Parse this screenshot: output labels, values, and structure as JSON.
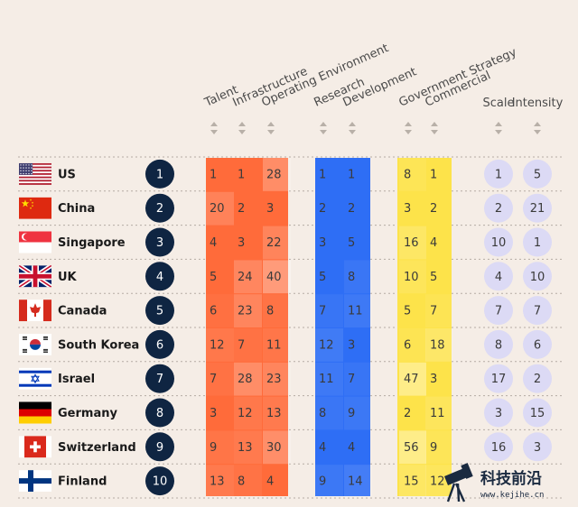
{
  "chart_data": {
    "type": "table",
    "columns": [
      {
        "key": "talent",
        "label": "Talent",
        "group": "implementation",
        "color": "#ff6b3a"
      },
      {
        "key": "infrastructure",
        "label": "Infrastructure",
        "group": "implementation",
        "color": "#ff6b3a"
      },
      {
        "key": "operating_environment",
        "label": "Operating Environment",
        "group": "implementation",
        "color": "#ff6b3a"
      },
      {
        "key": "research",
        "label": "Research",
        "group": "innovation",
        "color": "#2e6ef5"
      },
      {
        "key": "development",
        "label": "Development",
        "group": "innovation",
        "color": "#2e6ef5"
      },
      {
        "key": "government_strategy",
        "label": "Government Strategy",
        "group": "investment",
        "color": "#fde34a"
      },
      {
        "key": "commercial",
        "label": "Commercial",
        "group": "investment",
        "color": "#fde34a"
      },
      {
        "key": "scale",
        "label": "Scale",
        "group": "summary",
        "color": "#dcdaf5"
      },
      {
        "key": "intensity",
        "label": "Intensity",
        "group": "summary",
        "color": "#dcdaf5"
      }
    ],
    "rows": [
      {
        "rank": 1,
        "country": "US",
        "flag": "us-flag",
        "values": [
          1,
          1,
          28,
          1,
          1,
          8,
          1,
          1,
          5
        ]
      },
      {
        "rank": 2,
        "country": "China",
        "flag": "china-flag",
        "values": [
          20,
          2,
          3,
          2,
          2,
          3,
          2,
          2,
          21
        ]
      },
      {
        "rank": 3,
        "country": "Singapore",
        "flag": "singapore-flag",
        "values": [
          4,
          3,
          22,
          3,
          5,
          16,
          4,
          10,
          1
        ]
      },
      {
        "rank": 4,
        "country": "UK",
        "flag": "uk-flag",
        "values": [
          5,
          24,
          40,
          5,
          8,
          10,
          5,
          4,
          10
        ]
      },
      {
        "rank": 5,
        "country": "Canada",
        "flag": "canada-flag",
        "values": [
          6,
          23,
          8,
          7,
          11,
          5,
          7,
          7,
          7
        ]
      },
      {
        "rank": 6,
        "country": "South Korea",
        "flag": "south-korea-flag",
        "values": [
          12,
          7,
          11,
          12,
          3,
          6,
          18,
          8,
          6
        ]
      },
      {
        "rank": 7,
        "country": "Israel",
        "flag": "israel-flag",
        "values": [
          7,
          28,
          23,
          11,
          7,
          47,
          3,
          17,
          2
        ]
      },
      {
        "rank": 8,
        "country": "Germany",
        "flag": "germany-flag",
        "values": [
          3,
          12,
          13,
          8,
          9,
          2,
          11,
          3,
          15
        ]
      },
      {
        "rank": 9,
        "country": "Switzerland",
        "flag": "switzerland-flag",
        "values": [
          9,
          13,
          30,
          4,
          4,
          56,
          9,
          16,
          3
        ]
      },
      {
        "rank": 10,
        "country": "Finland",
        "flag": "finland-flag",
        "values": [
          13,
          8,
          4,
          9,
          14,
          15,
          12,
          null,
          null
        ]
      }
    ]
  },
  "watermark": {
    "title": "科技前沿",
    "url": "www.kejihe.cn"
  },
  "colors": {
    "background": "#f5ede6",
    "rank_circle": "#0f2542",
    "implementation": "#ff6b3a",
    "innovation": "#2e6ef5",
    "investment": "#fde34a",
    "summary_circle": "#dcdaf5"
  }
}
